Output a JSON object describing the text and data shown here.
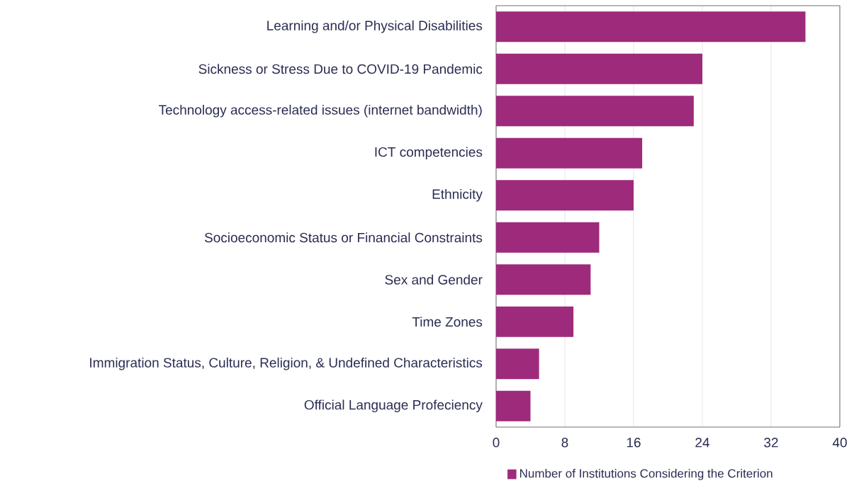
{
  "chart_data": {
    "type": "bar",
    "orientation": "horizontal",
    "categories": [
      "Learning and/or Physical Disabilities",
      "Sickness or Stress Due to COVID-19 Pandemic",
      "Technology access-related issues (internet bandwidth)",
      "ICT competencies",
      "Ethnicity",
      "Socioeconomic Status or Financial Constraints",
      "Sex and Gender",
      "Time Zones",
      "Immigration Status, Culture, Religion, & Undefined Characteristics",
      "Official Language Profeciency"
    ],
    "series": [
      {
        "name": "Number of Institutions Considering the Criterion",
        "color": "#9e2a7b",
        "values": [
          36,
          24,
          23,
          17,
          16,
          12,
          11,
          9,
          5,
          4
        ]
      }
    ],
    "xlim": [
      0,
      40
    ],
    "xticks": [
      0,
      8,
      16,
      24,
      32,
      40
    ],
    "grid": "x",
    "legend": "bottom"
  }
}
